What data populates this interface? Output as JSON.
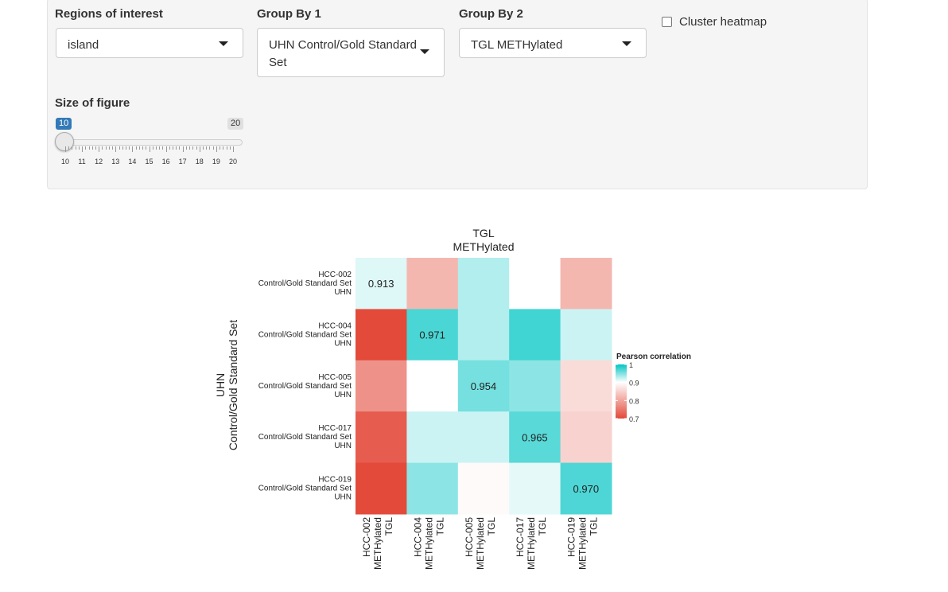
{
  "controls": {
    "regions": {
      "label": "Regions of interest",
      "value": "island"
    },
    "group1": {
      "label": "Group By 1",
      "value": "UHN Control/Gold Standard Set"
    },
    "group2": {
      "label": "Group By 2",
      "value": "TGL METHylated"
    },
    "cluster": {
      "label": "Cluster heatmap",
      "checked": false
    },
    "size": {
      "label": "Size of figure",
      "value": 10,
      "min": 10,
      "max": 20,
      "value_badge": "10",
      "max_badge": "20",
      "ticks": [
        "10",
        "11",
        "12",
        "13",
        "14",
        "15",
        "16",
        "17",
        "18",
        "19",
        "20"
      ]
    }
  },
  "chart_data": {
    "type": "heatmap",
    "title": [
      "TGL",
      "METHylated"
    ],
    "ylabel": [
      "UHN",
      "Control/Gold Standard Set"
    ],
    "rows": [
      [
        "HCC-002",
        "Control/Gold Standard Set",
        "UHN"
      ],
      [
        "HCC-004",
        "Control/Gold Standard Set",
        "UHN"
      ],
      [
        "HCC-005",
        "Control/Gold Standard Set",
        "UHN"
      ],
      [
        "HCC-017",
        "Control/Gold Standard Set",
        "UHN"
      ],
      [
        "HCC-019",
        "Control/Gold Standard Set",
        "UHN"
      ]
    ],
    "columns": [
      [
        "HCC-002",
        "METHylated",
        "TGL"
      ],
      [
        "HCC-004",
        "METHylated",
        "TGL"
      ],
      [
        "HCC-005",
        "METHylated",
        "TGL"
      ],
      [
        "HCC-017",
        "METHylated",
        "TGL"
      ],
      [
        "HCC-019",
        "METHylated",
        "TGL"
      ]
    ],
    "values": [
      [
        0.913,
        0.82,
        0.93,
        0.9,
        0.82
      ],
      [
        0.7,
        0.971,
        0.93,
        0.975,
        0.92
      ],
      [
        0.78,
        0.9,
        0.954,
        0.945,
        0.86
      ],
      [
        0.72,
        0.92,
        0.92,
        0.965,
        0.85
      ],
      [
        0.7,
        0.945,
        0.895,
        0.91,
        0.97
      ]
    ],
    "cell_labels": [
      [
        "0.913",
        "",
        "",
        "",
        ""
      ],
      [
        "",
        "0.971",
        "",
        "",
        ""
      ],
      [
        "",
        "",
        "0.954",
        "",
        ""
      ],
      [
        "",
        "",
        "",
        "0.965",
        ""
      ],
      [
        "",
        "",
        "",
        "",
        "0.970"
      ]
    ],
    "legend": {
      "title": "Pearson correlation",
      "ticks": [
        "1",
        "0.9",
        "0.8",
        "0.7"
      ],
      "tick_values": [
        1,
        0.9,
        0.8,
        0.7
      ],
      "range": [
        0.7,
        1.0
      ]
    },
    "colors": {
      "low": "#e34a3a",
      "mid": "#ffffff",
      "high": "#00c5c3"
    }
  }
}
